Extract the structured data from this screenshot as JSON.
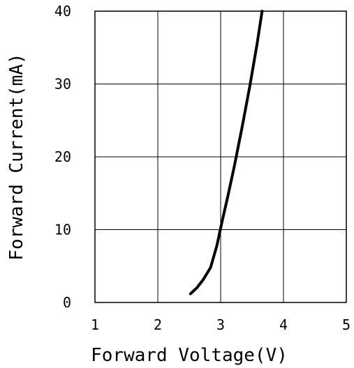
{
  "chart_data": {
    "type": "line",
    "xlabel": "Forward Voltage(V)",
    "ylabel": "Forward Current(mA)",
    "xlim": [
      1,
      5
    ],
    "ylim": [
      0,
      40
    ],
    "x_ticks": [
      "1",
      "2",
      "3",
      "4",
      "5"
    ],
    "y_ticks": [
      "0",
      "10",
      "20",
      "30",
      "40"
    ],
    "grid": true,
    "series": [
      {
        "color": "#000000",
        "x": [
          2.52,
          2.62,
          2.72,
          2.84,
          2.94,
          3.02,
          3.12,
          3.22,
          3.34,
          3.46,
          3.58,
          3.66
        ],
        "y": [
          1.2,
          2.0,
          3.1,
          4.8,
          7.8,
          11.0,
          14.8,
          18.8,
          24.0,
          29.5,
          35.5,
          40.0
        ]
      }
    ]
  }
}
